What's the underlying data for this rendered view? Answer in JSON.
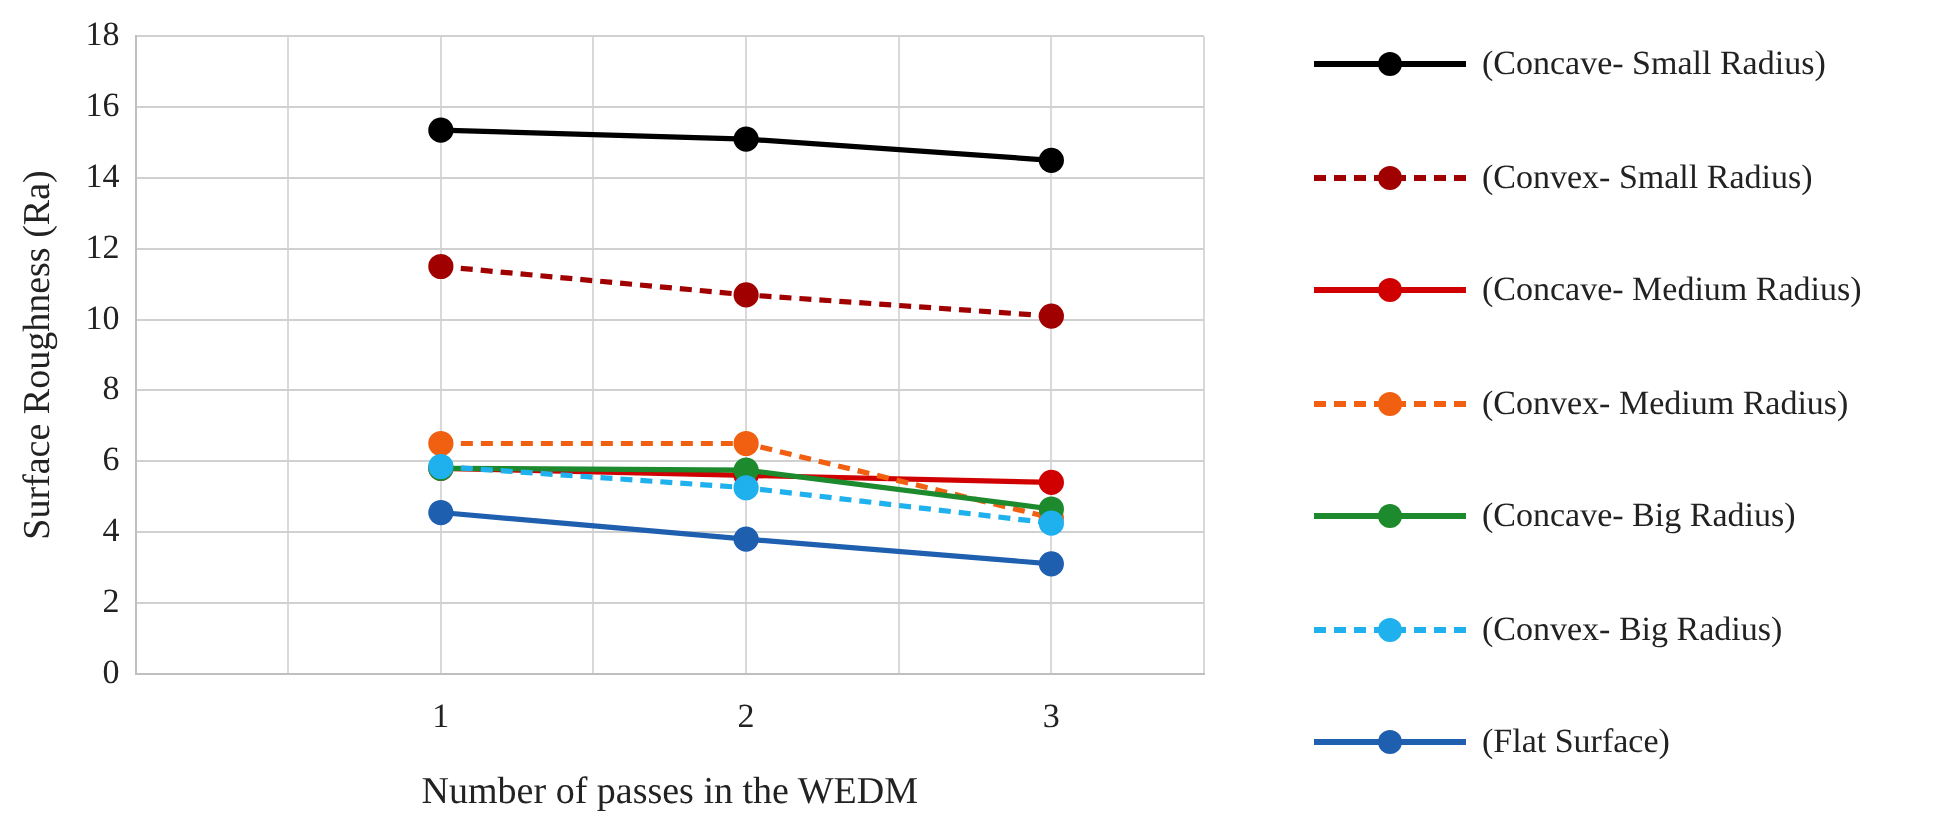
{
  "chart_data": {
    "type": "line",
    "xlabel": "Number of passes in the WEDM",
    "ylabel": "Surface Roughness (Ra)",
    "x": [
      1,
      2,
      3
    ],
    "xlim": [
      0,
      3.5
    ],
    "xticks": [
      {
        "value": 0,
        "label": null
      },
      {
        "value": 0.5,
        "label": null
      },
      1,
      {
        "value": 1.5,
        "label": null
      },
      2,
      {
        "value": 2.5,
        "label": null
      },
      3,
      {
        "value": 3.5,
        "label": null
      }
    ],
    "ylim": [
      0,
      18
    ],
    "yticks": [
      0,
      2,
      4,
      6,
      8,
      10,
      12,
      14,
      16,
      18
    ],
    "grid": true,
    "legend": "right",
    "marker": "circle",
    "series": [
      {
        "name": "(Concave- Small Radius)",
        "color": "#000000",
        "line_style": "solid",
        "values": [
          15.35,
          15.1,
          14.5
        ]
      },
      {
        "name": "(Convex- Small Radius)",
        "color": "#a00000",
        "line_style": "dashed",
        "values": [
          11.5,
          10.7,
          10.1
        ]
      },
      {
        "name": "(Concave- Medium Radius)",
        "color": "#d00000",
        "line_style": "solid",
        "values": [
          5.8,
          5.6,
          5.4
        ]
      },
      {
        "name": "(Convex- Medium Radius)",
        "color": "#f06010",
        "line_style": "dashed",
        "values": [
          6.5,
          6.5,
          4.4
        ]
      },
      {
        "name": "(Concave- Big Radius)",
        "color": "#1e8a2e",
        "line_style": "solid",
        "values": [
          5.8,
          5.75,
          4.65
        ]
      },
      {
        "name": "(Convex- Big Radius)",
        "color": "#1fb0ee",
        "line_style": "dashed",
        "values": [
          5.85,
          5.25,
          4.25
        ]
      },
      {
        "name": "(Flat Surface)",
        "color": "#1f5fb0",
        "line_style": "solid",
        "values": [
          4.55,
          3.8,
          3.1
        ]
      }
    ]
  }
}
